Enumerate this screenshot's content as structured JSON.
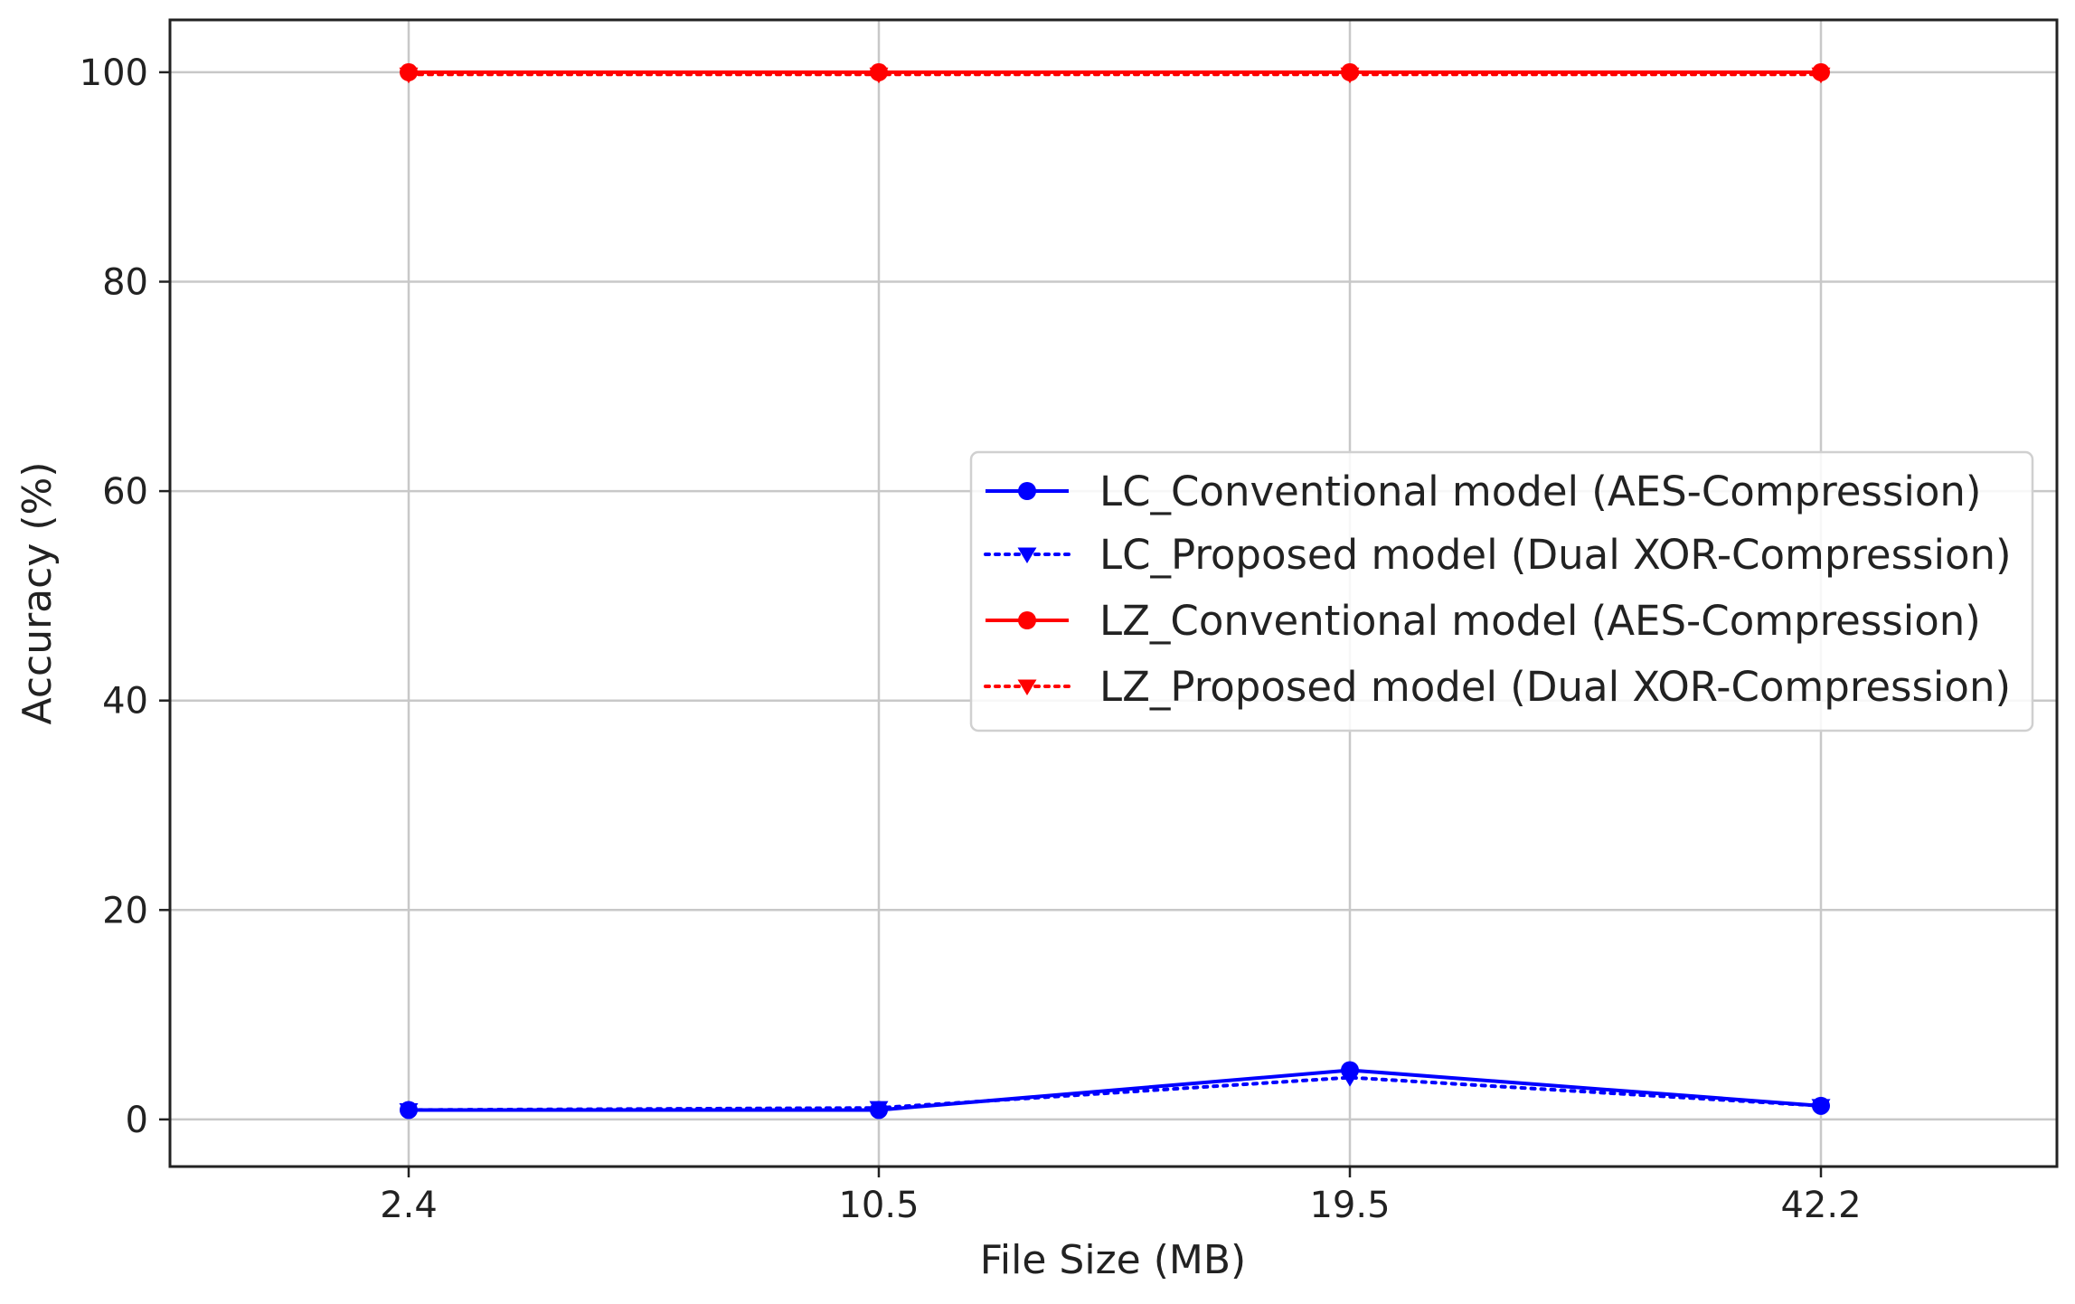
{
  "chart_data": {
    "type": "line",
    "title": "",
    "xlabel": "File Size (MB)",
    "ylabel": "Accuracy (%)",
    "categories": [
      "2.4",
      "10.5",
      "19.5",
      "42.2"
    ],
    "ylim": [
      -4.5,
      105
    ],
    "yticks": [
      "0",
      "20",
      "40",
      "60",
      "80",
      "100"
    ],
    "grid": true,
    "legend_position": "center-right",
    "series": [
      {
        "name": "LC_Conventional model (AES-Compression)",
        "values": [
          0.9,
          0.9,
          4.7,
          1.3
        ],
        "color": "#0000ff",
        "line_style": "solid",
        "marker": "circle"
      },
      {
        "name": "LC_Proposed model (Dual XOR-Compression)",
        "values": [
          0.9,
          1.1,
          4.0,
          1.3
        ],
        "color": "#0000ff",
        "line_style": "dotted",
        "marker": "triangle-down"
      },
      {
        "name": "LZ_Conventional model (AES-Compression)",
        "values": [
          100,
          100,
          100,
          100
        ],
        "color": "#ff0000",
        "line_style": "solid",
        "marker": "circle"
      },
      {
        "name": "LZ_Proposed model (Dual XOR-Compression)",
        "values": [
          99.8,
          99.8,
          99.8,
          99.8
        ],
        "color": "#ff0000",
        "line_style": "dotted",
        "marker": "triangle-down"
      }
    ]
  }
}
